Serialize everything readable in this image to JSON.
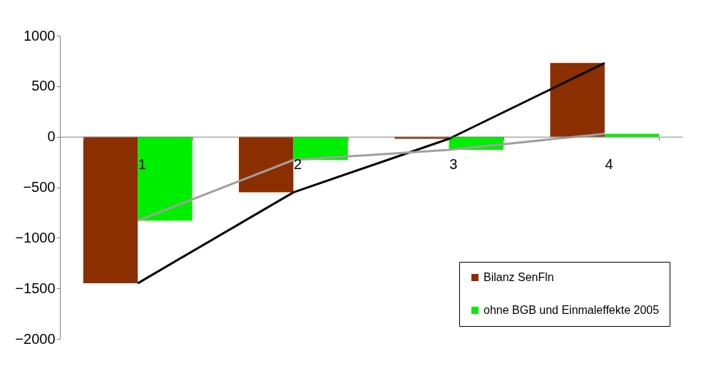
{
  "chart_data": {
    "type": "bar",
    "categories": [
      "1",
      "2",
      "3",
      "4"
    ],
    "series": [
      {
        "name": "Bilanz SenFln",
        "color": "#8b2e00",
        "values": [
          -1450,
          -550,
          -20,
          730
        ]
      },
      {
        "name": "ohne BGB und Einmaleffekte 2005",
        "color": "#00ee00",
        "values": [
          -830,
          -230,
          -130,
          30
        ]
      },
      {
        "type": "line",
        "color": "#000000",
        "values": [
          -1450,
          -550,
          -20,
          730
        ]
      },
      {
        "type": "line",
        "color": "#a0a0a0",
        "values": [
          -830,
          -230,
          -130,
          30
        ]
      }
    ],
    "ylim": [
      -2000,
      1000
    ],
    "yticks": [
      -2000,
      -1500,
      -1000,
      -500,
      0,
      500,
      1000
    ],
    "grid": false,
    "legend": "bottom right"
  }
}
